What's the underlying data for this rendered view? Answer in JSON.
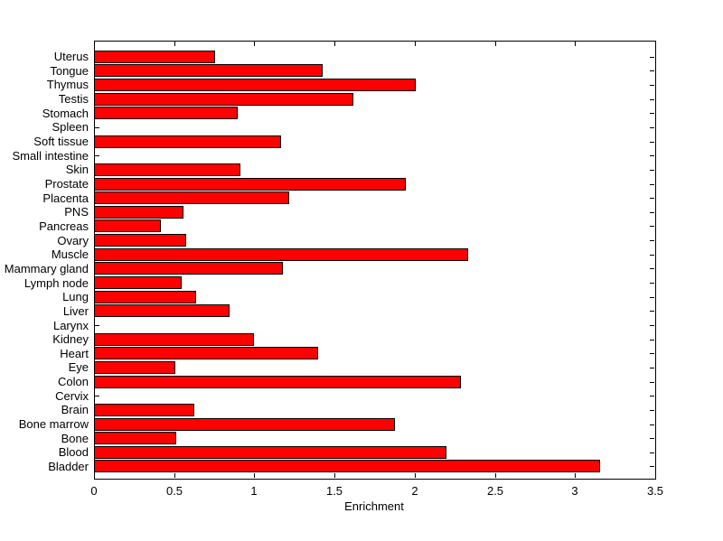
{
  "figure": {
    "background": "#ffffff"
  },
  "chart_data": {
    "type": "bar",
    "orientation": "horizontal",
    "title": "",
    "xlabel": "Enrichment",
    "ylabel": "",
    "grid": false,
    "legend": null,
    "bar_color": "#ff0000",
    "bar_edge_color": "#000000",
    "axis_color": "#000000",
    "xlim": [
      0,
      3.5
    ],
    "x_ticks": [
      0,
      0.5,
      1,
      1.5,
      2,
      2.5,
      3,
      3.5
    ],
    "x_tick_labels": [
      "0",
      "0.5",
      "1",
      "1.5",
      "2",
      "2.5",
      "3",
      "3.5"
    ],
    "categories": [
      "Uterus",
      "Tongue",
      "Thymus",
      "Testis",
      "Stomach",
      "Spleen",
      "Soft tissue",
      "Small intestine",
      "Skin",
      "Prostate",
      "Placenta",
      "PNS",
      "Pancreas",
      "Ovary",
      "Muscle",
      "Mammary gland",
      "Lymph node",
      "Lung",
      "Liver",
      "Larynx",
      "Kidney",
      "Heart",
      "Eye",
      "Colon",
      "Cervix",
      "Brain",
      "Bone marrow",
      "Bone",
      "Blood",
      "Bladder"
    ],
    "values": [
      0.75,
      1.42,
      2.0,
      1.61,
      0.89,
      0,
      1.16,
      0,
      0.91,
      1.94,
      1.21,
      0.55,
      0.41,
      0.57,
      2.33,
      1.17,
      0.54,
      0.63,
      0.84,
      0,
      0.99,
      1.39,
      0.5,
      2.28,
      0,
      0.62,
      1.87,
      0.51,
      2.19,
      3.15
    ]
  }
}
